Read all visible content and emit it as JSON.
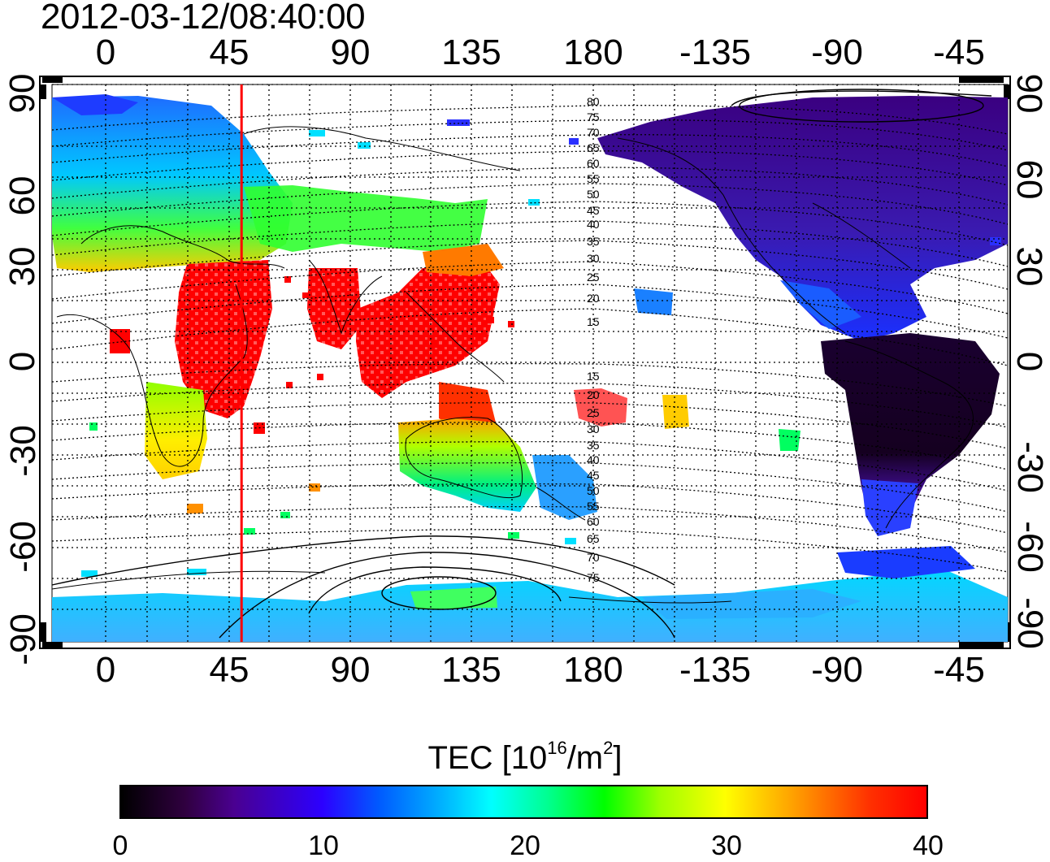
{
  "title": "2012-03-12/08:40:00",
  "x_ticks": [
    "0",
    "45",
    "90",
    "135",
    "180",
    "-135",
    "-90",
    "-45"
  ],
  "y_ticks": [
    "90",
    "60",
    "30",
    "0",
    "-30",
    "-60",
    "-90"
  ],
  "contour_labels": [
    "80",
    "75",
    "70",
    "65",
    "60",
    "55",
    "50",
    "45",
    "40",
    "35",
    "30",
    "25",
    "20",
    "15",
    "15",
    "20",
    "25",
    "30",
    "35",
    "40",
    "45",
    "50",
    "55",
    "60",
    "65",
    "70",
    "75"
  ],
  "colorbar": {
    "title_prefix": "TEC  [10",
    "title_exp1": "16",
    "title_mid": "/m",
    "title_exp2": "2",
    "title_suffix": "]",
    "ticks": [
      "0",
      "10",
      "20",
      "30",
      "40"
    ],
    "min": 0,
    "max": 40
  },
  "meridian_marker_lon": 50,
  "colors": {
    "marker_line": "#ff0000",
    "grid": "#000000"
  }
}
